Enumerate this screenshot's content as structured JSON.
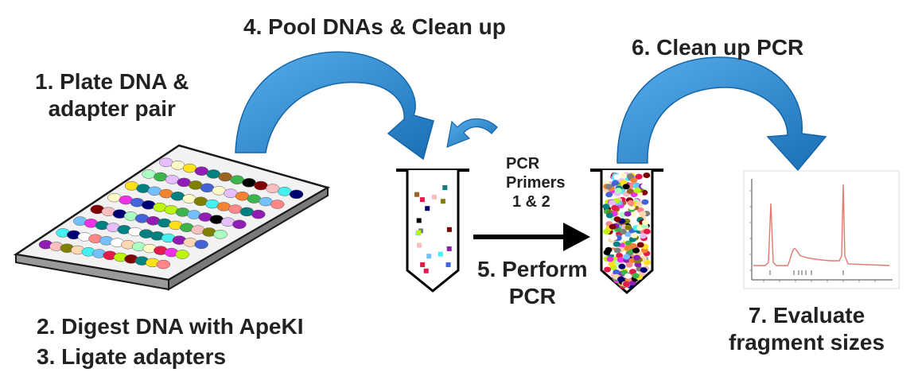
{
  "steps": {
    "plate": {
      "line1": "1. Plate DNA &",
      "line2": "adapter pair"
    },
    "digest": "2. Digest DNA with ApeKI",
    "ligate": "3. Ligate adapters",
    "pool": "4. Pool DNAs & Clean up",
    "perform": {
      "line1": "5. Perform",
      "line2": "PCR"
    },
    "cleanup": "6. Clean up PCR",
    "evaluate": {
      "line1": "7.  Evaluate",
      "line2": "fragment sizes"
    }
  },
  "primers": {
    "line1": "PCR",
    "line2": "Primers",
    "line3": "1 & 2"
  },
  "colors": {
    "text": "#222222",
    "arrow_blue": "#2E8FD6",
    "arrow_blue_dark": "#1566A8",
    "trace": "#E07A6E",
    "plate_outline": "#1a1a1a",
    "well_palette": [
      "#e6194b",
      "#3cb44b",
      "#ffe119",
      "#4363d8",
      "#f58231",
      "#911eb4",
      "#46f0f0",
      "#f032e6",
      "#bcf60c",
      "#fabebe",
      "#008080",
      "#e6beff",
      "#9a6324",
      "#fffac8",
      "#800000",
      "#aaffc3",
      "#808000",
      "#ffd8b1",
      "#000075",
      "#808080",
      "#ffffff",
      "#000000",
      "#74c0fc",
      "#ff8787"
    ]
  },
  "icons": [
    "curved-arrow-icon",
    "straight-arrow-icon",
    "tube-icon",
    "plate-icon",
    "electropherogram-icon"
  ]
}
